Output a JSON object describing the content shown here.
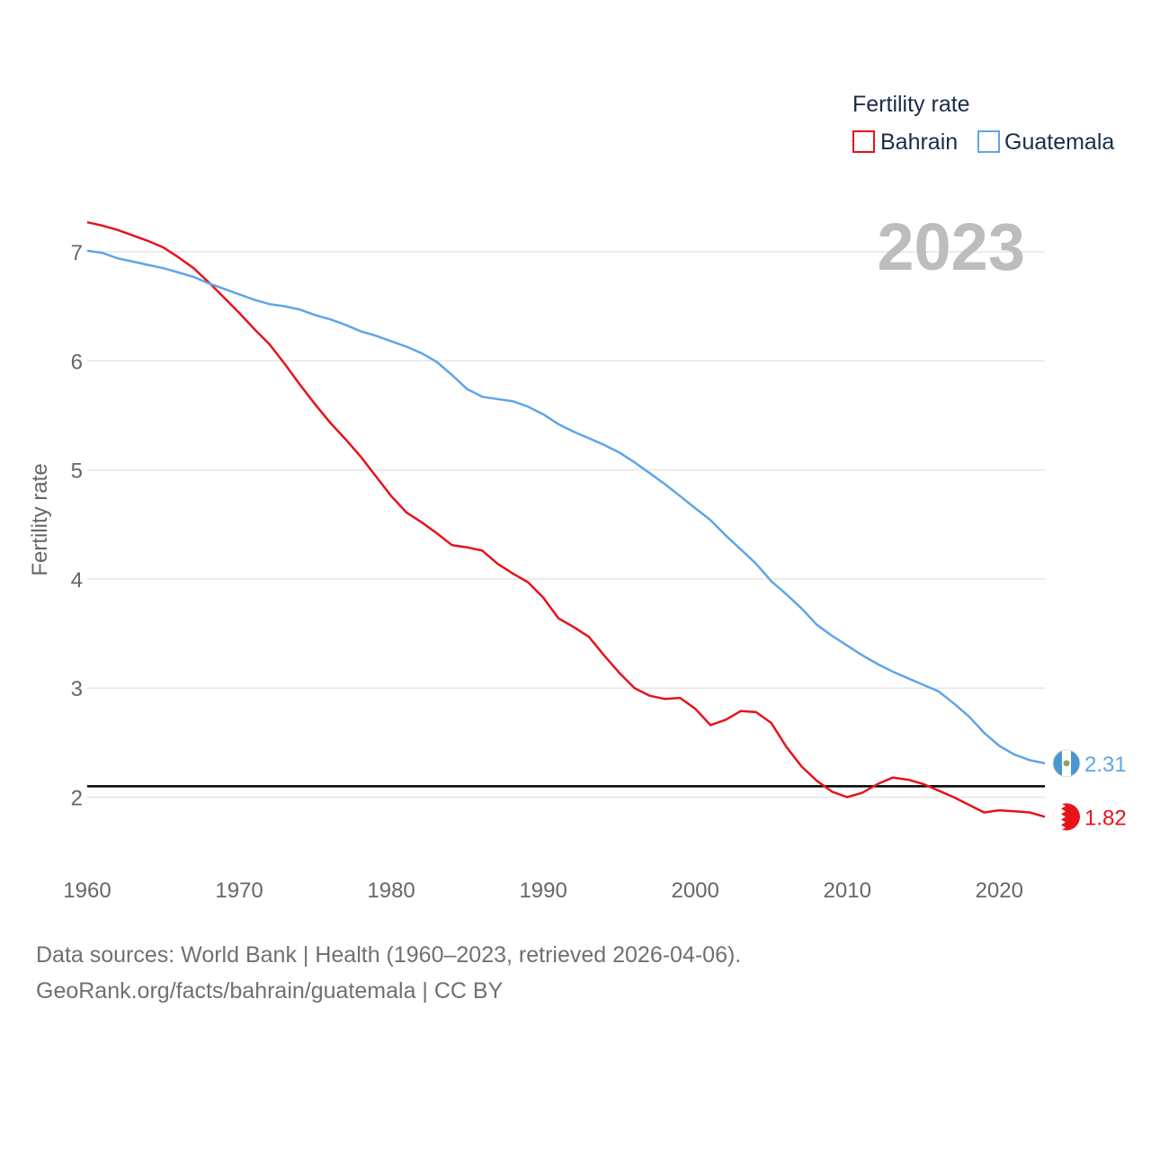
{
  "chart_data": {
    "type": "line",
    "title": "2023",
    "legend_title": "Fertility rate",
    "ylabel": "Fertility rate",
    "xlabel": "",
    "xlim": [
      1960,
      2023
    ],
    "ylim": [
      1.5,
      7.5
    ],
    "xticks": [
      1960,
      1970,
      1980,
      1990,
      2000,
      2010,
      2020
    ],
    "yticks": [
      2,
      3,
      4,
      5,
      6,
      7
    ],
    "grid": true,
    "legend_position": "top-right",
    "reference_line": 2.1,
    "x": [
      1960,
      1961,
      1962,
      1963,
      1964,
      1965,
      1966,
      1967,
      1968,
      1969,
      1970,
      1971,
      1972,
      1973,
      1974,
      1975,
      1976,
      1977,
      1978,
      1979,
      1980,
      1981,
      1982,
      1983,
      1984,
      1985,
      1986,
      1987,
      1988,
      1989,
      1990,
      1991,
      1992,
      1993,
      1994,
      1995,
      1996,
      1997,
      1998,
      1999,
      2000,
      2001,
      2002,
      2003,
      2004,
      2005,
      2006,
      2007,
      2008,
      2009,
      2010,
      2011,
      2012,
      2013,
      2014,
      2015,
      2016,
      2017,
      2018,
      2019,
      2020,
      2021,
      2022,
      2023
    ],
    "series": [
      {
        "name": "Bahrain",
        "color": "#e8121a",
        "end_label": "1.82",
        "values": [
          7.27,
          7.24,
          7.2,
          7.15,
          7.1,
          7.04,
          6.95,
          6.85,
          6.72,
          6.58,
          6.44,
          6.29,
          6.15,
          5.97,
          5.78,
          5.6,
          5.43,
          5.28,
          5.12,
          4.94,
          4.76,
          4.61,
          4.52,
          4.42,
          4.31,
          4.29,
          4.26,
          4.14,
          4.05,
          3.97,
          3.83,
          3.64,
          3.56,
          3.47,
          3.3,
          3.14,
          3.0,
          2.93,
          2.9,
          2.91,
          2.81,
          2.66,
          2.71,
          2.79,
          2.78,
          2.68,
          2.46,
          2.28,
          2.15,
          2.05,
          2.0,
          2.04,
          2.12,
          2.18,
          2.16,
          2.12,
          2.06,
          2.0,
          1.93,
          1.86,
          1.88,
          1.87,
          1.86,
          1.82
        ]
      },
      {
        "name": "Guatemala",
        "color": "#5ea5e8",
        "end_label": "2.31",
        "values": [
          7.01,
          6.99,
          6.94,
          6.91,
          6.88,
          6.85,
          6.81,
          6.77,
          6.71,
          6.66,
          6.61,
          6.56,
          6.52,
          6.5,
          6.47,
          6.42,
          6.38,
          6.33,
          6.27,
          6.23,
          6.18,
          6.13,
          6.07,
          5.99,
          5.87,
          5.74,
          5.67,
          5.65,
          5.63,
          5.58,
          5.51,
          5.42,
          5.35,
          5.29,
          5.23,
          5.16,
          5.07,
          4.97,
          4.87,
          4.76,
          4.65,
          4.54,
          4.4,
          4.27,
          4.14,
          3.98,
          3.86,
          3.73,
          3.58,
          3.48,
          3.39,
          3.3,
          3.22,
          3.15,
          3.09,
          3.03,
          2.97,
          2.86,
          2.74,
          2.59,
          2.47,
          2.39,
          2.34,
          2.31
        ]
      }
    ]
  },
  "footer": {
    "line1": "Data sources: World Bank | Health (1960–2023, retrieved 2026-04-06).",
    "line2": "GeoRank.org/facts/bahrain/guatemala | CC BY"
  }
}
